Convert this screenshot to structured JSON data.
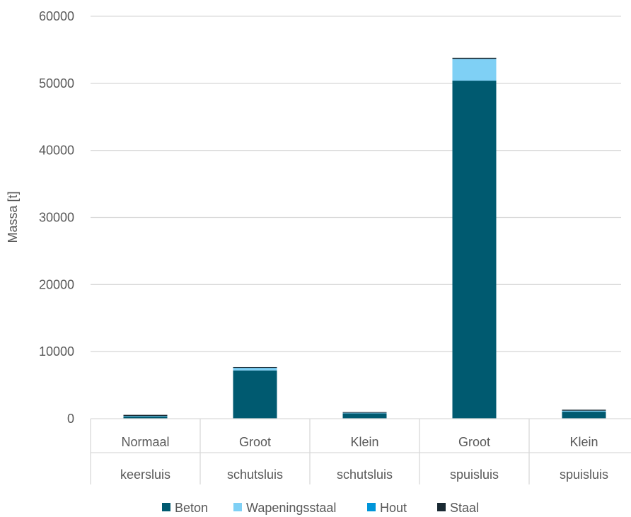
{
  "chart_data": {
    "type": "bar",
    "stacked": true,
    "title": "",
    "xlabel": "",
    "ylabel": "Massa [t]",
    "ylim": [
      0,
      60000
    ],
    "yticks": [
      0,
      10000,
      20000,
      30000,
      40000,
      50000,
      60000
    ],
    "grid": true,
    "legend_position": "bottom",
    "categories": [
      [
        "Normaal",
        "keersluis"
      ],
      [
        "Groot",
        "schutsluis"
      ],
      [
        "Klein",
        "schutsluis"
      ],
      [
        "Groot",
        "spuisluis"
      ],
      [
        "Klein",
        "spuisluis"
      ]
    ],
    "series": [
      {
        "name": "Beton",
        "color": "#005a70",
        "values": [
          350,
          7200,
          800,
          50400,
          1050
        ]
      },
      {
        "name": "Wapeningsstaal",
        "color": "#7fd0f5",
        "values": [
          50,
          350,
          60,
          3250,
          120
        ]
      },
      {
        "name": "Hout",
        "color": "#0095d9",
        "values": [
          20,
          30,
          20,
          0,
          20
        ]
      },
      {
        "name": "Staal",
        "color": "#1a2a33",
        "values": [
          150,
          120,
          100,
          150,
          150
        ]
      }
    ]
  }
}
